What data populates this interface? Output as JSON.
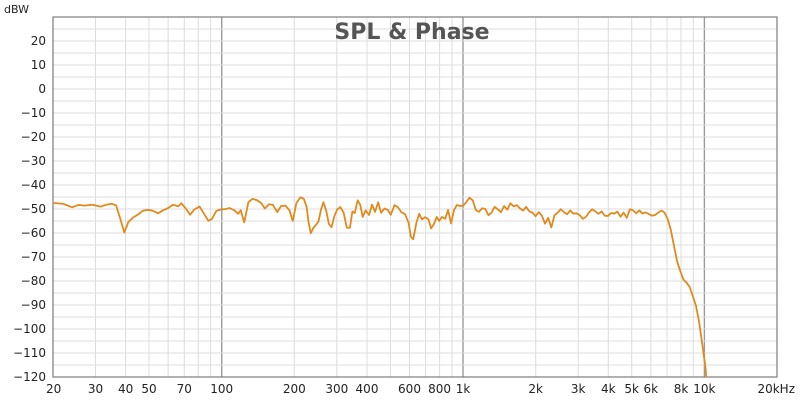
{
  "chart_data": {
    "type": "line",
    "title": "SPL & Phase",
    "ylabel": "dBW",
    "xlabel": "",
    "x_scale": "log",
    "xlim": [
      20,
      20000
    ],
    "ylim": [
      -120,
      30
    ],
    "grid": true,
    "y_ticks": [
      20,
      10,
      0,
      -10,
      -20,
      -30,
      -40,
      -50,
      -60,
      -70,
      -80,
      -90,
      -100,
      -110,
      -120
    ],
    "x_ticks": [
      {
        "value": 20,
        "label": "20"
      },
      {
        "value": 30,
        "label": "30"
      },
      {
        "value": 40,
        "label": "40"
      },
      {
        "value": 50,
        "label": "50"
      },
      {
        "value": 70,
        "label": "70"
      },
      {
        "value": 100,
        "label": "100"
      },
      {
        "value": 200,
        "label": "200"
      },
      {
        "value": 300,
        "label": "300"
      },
      {
        "value": 400,
        "label": "400"
      },
      {
        "value": 600,
        "label": "600"
      },
      {
        "value": 800,
        "label": "800"
      },
      {
        "value": 1000,
        "label": "1k"
      },
      {
        "value": 2000,
        "label": "2k"
      },
      {
        "value": 3000,
        "label": "3k"
      },
      {
        "value": 4000,
        "label": "4k"
      },
      {
        "value": 5000,
        "label": "5k"
      },
      {
        "value": 6000,
        "label": "6k"
      },
      {
        "value": 8000,
        "label": "8k"
      },
      {
        "value": 10000,
        "label": "10k"
      },
      {
        "value": 20000,
        "label": "20kHz"
      }
    ],
    "series": [
      {
        "color": "#e08a1e",
        "points": [
          [
            20,
            -47.5
          ],
          [
            22,
            -47.8
          ],
          [
            24,
            -49.3
          ],
          [
            25.5,
            -48.3
          ],
          [
            27,
            -48.6
          ],
          [
            29,
            -48.2
          ],
          [
            31.5,
            -49.0
          ],
          [
            33,
            -48.3
          ],
          [
            35,
            -47.8
          ],
          [
            36.5,
            -48.5
          ],
          [
            38,
            -54
          ],
          [
            39.5,
            -59.8
          ],
          [
            41,
            -55.5
          ],
          [
            43,
            -53.5
          ],
          [
            45,
            -52.3
          ],
          [
            47,
            -50.8
          ],
          [
            49.5,
            -50.3
          ],
          [
            52,
            -50.8
          ],
          [
            54.5,
            -51.8
          ],
          [
            57,
            -50.6
          ],
          [
            60,
            -49.6
          ],
          [
            63,
            -48.2
          ],
          [
            66,
            -48.9
          ],
          [
            68,
            -47.6
          ],
          [
            71,
            -49.8
          ],
          [
            74,
            -52.4
          ],
          [
            77,
            -50.2
          ],
          [
            81,
            -49.0
          ],
          [
            84,
            -51.6
          ],
          [
            88,
            -54.9
          ],
          [
            91,
            -54.2
          ],
          [
            95,
            -50.8
          ],
          [
            99,
            -50.2
          ],
          [
            104,
            -50.0
          ],
          [
            108,
            -49.6
          ],
          [
            113,
            -50.6
          ],
          [
            117,
            -52.0
          ],
          [
            120,
            -50.5
          ],
          [
            124,
            -55.6
          ],
          [
            129,
            -47.2
          ],
          [
            134,
            -45.8
          ],
          [
            140,
            -46.3
          ],
          [
            146,
            -47.6
          ],
          [
            151,
            -49.8
          ],
          [
            157,
            -48.0
          ],
          [
            163,
            -48.3
          ],
          [
            170,
            -51.3
          ],
          [
            176,
            -48.8
          ],
          [
            184,
            -48.6
          ],
          [
            191,
            -50.6
          ],
          [
            197,
            -55.0
          ],
          [
            204,
            -47.5
          ],
          [
            212,
            -45.1
          ],
          [
            219,
            -45.8
          ],
          [
            225,
            -49.2
          ],
          [
            229,
            -55.5
          ],
          [
            234,
            -60.1
          ],
          [
            240,
            -57.8
          ],
          [
            246,
            -56.6
          ],
          [
            252,
            -55.1
          ],
          [
            258,
            -50.2
          ],
          [
            264,
            -47.2
          ],
          [
            271,
            -50.6
          ],
          [
            278,
            -56.2
          ],
          [
            285,
            -57.6
          ],
          [
            293,
            -53.0
          ],
          [
            301,
            -50.2
          ],
          [
            310,
            -49.2
          ],
          [
            320,
            -51.5
          ],
          [
            330,
            -57.8
          ],
          [
            340,
            -57.8
          ],
          [
            348,
            -51.0
          ],
          [
            356,
            -51.7
          ],
          [
            366,
            -46.4
          ],
          [
            375,
            -48.2
          ],
          [
            384,
            -53.3
          ],
          [
            395,
            -50.6
          ],
          [
            408,
            -52.5
          ],
          [
            420,
            -48.2
          ],
          [
            432,
            -51.2
          ],
          [
            445,
            -47.2
          ],
          [
            458,
            -51.6
          ],
          [
            472,
            -49.8
          ],
          [
            487,
            -50.3
          ],
          [
            502,
            -52.4
          ],
          [
            520,
            -48.4
          ],
          [
            537,
            -49.2
          ],
          [
            556,
            -51.4
          ],
          [
            575,
            -52.1
          ],
          [
            595,
            -55.8
          ],
          [
            608,
            -61.5
          ],
          [
            622,
            -62.6
          ],
          [
            640,
            -56.0
          ],
          [
            658,
            -52.0
          ],
          [
            676,
            -54.3
          ],
          [
            697,
            -53.4
          ],
          [
            719,
            -54.3
          ],
          [
            738,
            -58.1
          ],
          [
            759,
            -56.1
          ],
          [
            778,
            -53.3
          ],
          [
            797,
            -55.0
          ],
          [
            818,
            -53.3
          ],
          [
            843,
            -54.1
          ],
          [
            867,
            -50.4
          ],
          [
            892,
            -56.0
          ],
          [
            918,
            -50.4
          ],
          [
            944,
            -48.3
          ],
          [
            972,
            -48.8
          ],
          [
            1002,
            -48.6
          ],
          [
            1033,
            -47.1
          ],
          [
            1063,
            -45.3
          ],
          [
            1097,
            -46.4
          ],
          [
            1130,
            -50.4
          ],
          [
            1164,
            -51.2
          ],
          [
            1200,
            -49.7
          ],
          [
            1237,
            -50.0
          ],
          [
            1275,
            -52.6
          ],
          [
            1313,
            -51.5
          ],
          [
            1353,
            -49.1
          ],
          [
            1394,
            -50.2
          ],
          [
            1436,
            -51.3
          ],
          [
            1480,
            -48.8
          ],
          [
            1525,
            -50.3
          ],
          [
            1572,
            -47.6
          ],
          [
            1620,
            -48.9
          ],
          [
            1670,
            -48.4
          ],
          [
            1720,
            -49.7
          ],
          [
            1772,
            -50.7
          ],
          [
            1826,
            -49.1
          ],
          [
            1882,
            -51.0
          ],
          [
            1940,
            -51.5
          ],
          [
            1998,
            -53.0
          ],
          [
            2059,
            -51.3
          ],
          [
            2122,
            -52.8
          ],
          [
            2187,
            -56.1
          ],
          [
            2254,
            -53.7
          ],
          [
            2322,
            -57.7
          ],
          [
            2393,
            -52.6
          ],
          [
            2466,
            -51.6
          ],
          [
            2541,
            -50.1
          ],
          [
            2618,
            -51.3
          ],
          [
            2698,
            -52.2
          ],
          [
            2780,
            -50.6
          ],
          [
            2865,
            -51.9
          ],
          [
            2952,
            -51.8
          ],
          [
            3042,
            -52.5
          ],
          [
            3135,
            -54.1
          ],
          [
            3230,
            -53.3
          ],
          [
            3329,
            -51.4
          ],
          [
            3430,
            -50.1
          ],
          [
            3534,
            -51.0
          ],
          [
            3642,
            -52.0
          ],
          [
            3753,
            -51.0
          ],
          [
            3867,
            -52.8
          ],
          [
            3985,
            -52.9
          ],
          [
            4106,
            -51.7
          ],
          [
            4231,
            -51.9
          ],
          [
            4360,
            -51.1
          ],
          [
            4493,
            -53.2
          ],
          [
            4630,
            -51.5
          ],
          [
            4771,
            -53.7
          ],
          [
            4916,
            -50.1
          ],
          [
            5066,
            -50.6
          ],
          [
            5220,
            -51.8
          ],
          [
            5380,
            -50.6
          ],
          [
            5543,
            -51.9
          ],
          [
            5712,
            -51.4
          ],
          [
            5886,
            -52.1
          ],
          [
            6065,
            -52.8
          ],
          [
            6250,
            -52.5
          ],
          [
            6441,
            -51.5
          ],
          [
            6637,
            -50.6
          ],
          [
            6839,
            -51.5
          ],
          [
            7048,
            -54.2
          ],
          [
            7262,
            -58.7
          ],
          [
            7483,
            -65.3
          ],
          [
            7711,
            -71.8
          ],
          [
            7946,
            -75.8
          ],
          [
            8188,
            -79.4
          ],
          [
            8437,
            -80.7
          ],
          [
            8694,
            -82.5
          ],
          [
            8959,
            -86.3
          ],
          [
            9232,
            -90.3
          ],
          [
            9513,
            -97.1
          ],
          [
            9802,
            -106.4
          ],
          [
            10100,
            -115.7
          ],
          [
            10200,
            -121
          ]
        ]
      }
    ]
  }
}
